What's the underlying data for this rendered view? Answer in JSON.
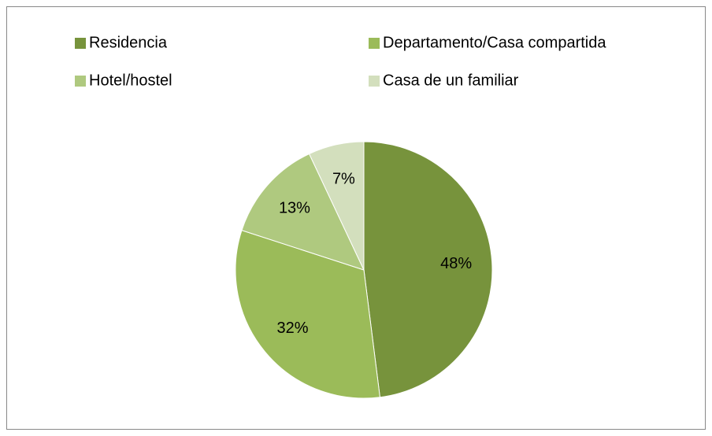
{
  "chart_data": {
    "type": "pie",
    "categories": [
      "Residencia",
      "Departamento/Casa compartida",
      "Hotel/hostel",
      "Casa de un familiar"
    ],
    "values": [
      48,
      32,
      13,
      7
    ],
    "value_labels": [
      "48%",
      "32%",
      "13%",
      "7%"
    ],
    "colors": [
      "#77933c",
      "#9bbb59",
      "#afc97f",
      "#d3dfbd"
    ],
    "legend": "top"
  }
}
